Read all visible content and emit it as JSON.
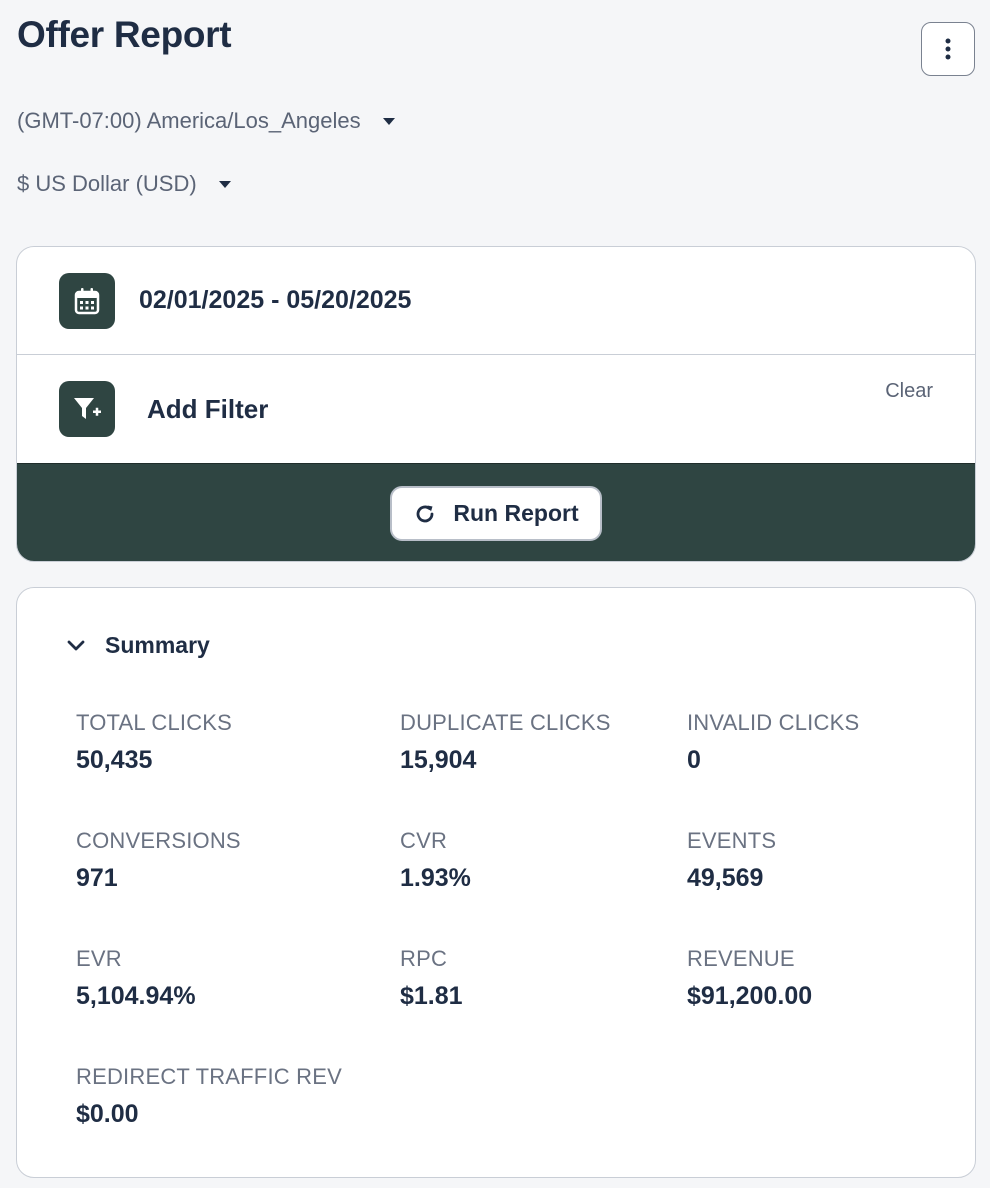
{
  "header": {
    "title": "Offer Report",
    "more_icon": "vertical-ellipsis-icon"
  },
  "selectors": {
    "timezone": "(GMT-07:00) America/Los_Angeles",
    "currency": "$ US Dollar (USD)"
  },
  "filters": {
    "date_range": "02/01/2025 - 05/20/2025",
    "add_filter_label": "Add Filter",
    "clear_label": "Clear",
    "run_label": "Run Report"
  },
  "summary": {
    "title": "Summary",
    "metrics": [
      {
        "label": "TOTAL CLICKS",
        "value": "50,435"
      },
      {
        "label": "DUPLICATE CLICKS",
        "value": "15,904"
      },
      {
        "label": "INVALID CLICKS",
        "value": "0"
      },
      {
        "label": "CONVERSIONS",
        "value": "971"
      },
      {
        "label": "CVR",
        "value": "1.93%"
      },
      {
        "label": "EVENTS",
        "value": "49,569"
      },
      {
        "label": "EVR",
        "value": "5,104.94%"
      },
      {
        "label": "RPC",
        "value": "$1.81"
      },
      {
        "label": "REVENUE",
        "value": "$91,200.00"
      },
      {
        "label": "REDIRECT TRAFFIC REV",
        "value": "$0.00"
      }
    ]
  },
  "colors": {
    "primary_dark": "#2f4542",
    "text_dark": "#1f2d44",
    "text_muted": "#5b6476",
    "background": "#f5f6f8"
  }
}
